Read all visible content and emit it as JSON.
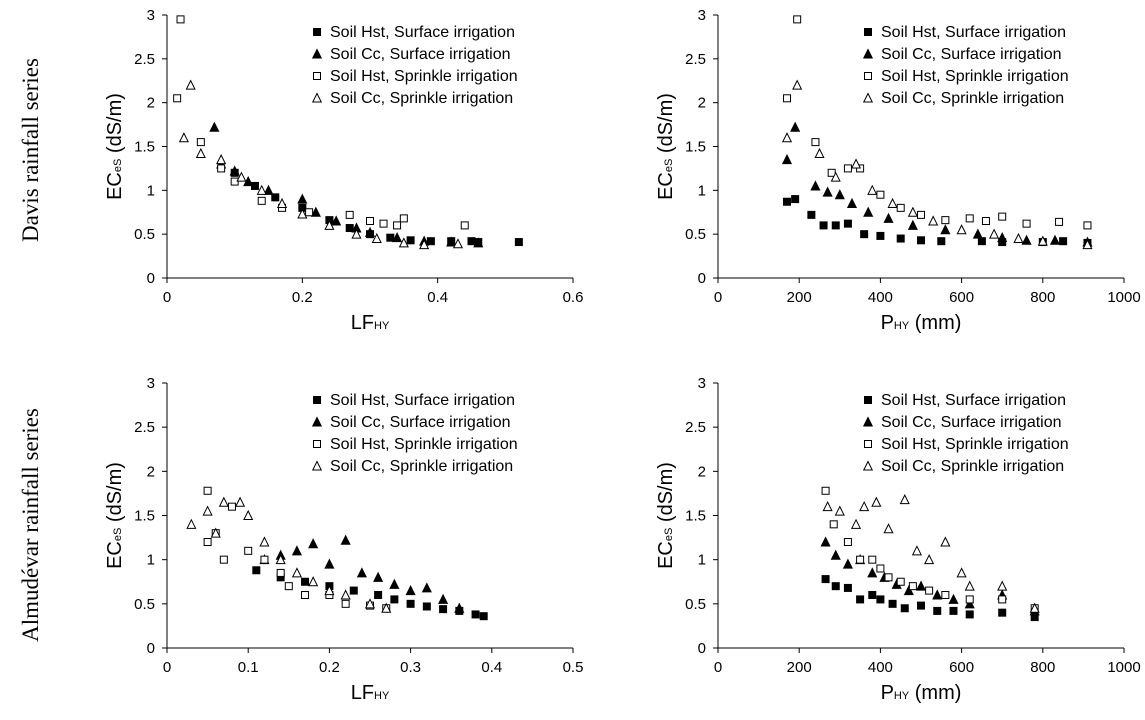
{
  "row_labels": [
    "Davis rainfall series",
    "Almudévar rainfall series"
  ],
  "legend": [
    {
      "name": "Soil Hst, Surface irrigation",
      "marker": "square-filled"
    },
    {
      "name": "Soil Cc, Surface irrigation",
      "marker": "triangle-filled"
    },
    {
      "name": "Soil Hst, Sprinkle irrigation",
      "marker": "square-open"
    },
    {
      "name": "Soil Cc, Sprinkle irrigation",
      "marker": "triangle-open"
    }
  ],
  "chart_data": [
    {
      "type": "scatter",
      "ylabel_main": "EC",
      "ylabel_sub": "eS",
      "ylabel_unit": " (dS/m)",
      "xlabel_main": "LF",
      "xlabel_sub": "HY",
      "xlabel_unit": "",
      "xlim": [
        0,
        0.6
      ],
      "ylim": [
        0,
        3
      ],
      "xticks": [
        "0",
        "0.2",
        "0.4",
        "0.6"
      ],
      "yticks": [
        "0",
        "0.5",
        "1",
        "1.5",
        "2",
        "2.5",
        "3"
      ],
      "legend_position": "top-right",
      "series": [
        {
          "name": "Soil Hst, Surface irrigation",
          "points": [
            [
              0.1,
              1.2
            ],
            [
              0.13,
              1.05
            ],
            [
              0.16,
              0.92
            ],
            [
              0.2,
              0.8
            ],
            [
              0.24,
              0.66
            ],
            [
              0.27,
              0.57
            ],
            [
              0.3,
              0.5
            ],
            [
              0.33,
              0.46
            ],
            [
              0.36,
              0.43
            ],
            [
              0.39,
              0.42
            ],
            [
              0.42,
              0.42
            ],
            [
              0.45,
              0.42
            ],
            [
              0.46,
              0.41
            ],
            [
              0.52,
              0.41
            ]
          ]
        },
        {
          "name": "Soil Cc, Surface irrigation",
          "points": [
            [
              0.07,
              1.72
            ],
            [
              0.08,
              1.3
            ],
            [
              0.1,
              1.22
            ],
            [
              0.12,
              1.1
            ],
            [
              0.15,
              1.0
            ],
            [
              0.2,
              0.9
            ],
            [
              0.22,
              0.75
            ],
            [
              0.25,
              0.65
            ],
            [
              0.28,
              0.57
            ],
            [
              0.3,
              0.52
            ],
            [
              0.34,
              0.46
            ],
            [
              0.38,
              0.42
            ],
            [
              0.42,
              0.41
            ],
            [
              0.46,
              0.4
            ]
          ]
        },
        {
          "name": "Soil Hst, Sprinkle irrigation",
          "points": [
            [
              0.015,
              2.05
            ],
            [
              0.02,
              2.95
            ],
            [
              0.05,
              1.55
            ],
            [
              0.08,
              1.25
            ],
            [
              0.1,
              1.1
            ],
            [
              0.14,
              0.88
            ],
            [
              0.17,
              0.8
            ],
            [
              0.21,
              0.75
            ],
            [
              0.27,
              0.72
            ],
            [
              0.3,
              0.65
            ],
            [
              0.32,
              0.62
            ],
            [
              0.34,
              0.6
            ],
            [
              0.35,
              0.68
            ],
            [
              0.44,
              0.6
            ]
          ]
        },
        {
          "name": "Soil Cc, Sprinkle irrigation",
          "points": [
            [
              0.025,
              1.6
            ],
            [
              0.035,
              2.2
            ],
            [
              0.05,
              1.42
            ],
            [
              0.08,
              1.35
            ],
            [
              0.11,
              1.15
            ],
            [
              0.14,
              1.0
            ],
            [
              0.17,
              0.85
            ],
            [
              0.2,
              0.73
            ],
            [
              0.24,
              0.6
            ],
            [
              0.28,
              0.5
            ],
            [
              0.31,
              0.45
            ],
            [
              0.35,
              0.4
            ],
            [
              0.38,
              0.38
            ],
            [
              0.43,
              0.39
            ]
          ]
        }
      ]
    },
    {
      "type": "scatter",
      "ylabel_main": "EC",
      "ylabel_sub": "eS",
      "ylabel_unit": " (dS/m)",
      "xlabel_main": "P",
      "xlabel_sub": "HY",
      "xlabel_unit": " (mm)",
      "xlim": [
        0,
        1000
      ],
      "ylim": [
        0,
        3
      ],
      "xticks": [
        "0",
        "200",
        "400",
        "600",
        "800",
        "1000"
      ],
      "yticks": [
        "0",
        "0.5",
        "1",
        "1.5",
        "2",
        "2.5",
        "3"
      ],
      "legend_position": "top-right",
      "series": [
        {
          "name": "Soil Hst, Surface irrigation",
          "points": [
            [
              170,
              0.87
            ],
            [
              190,
              0.9
            ],
            [
              230,
              0.72
            ],
            [
              260,
              0.6
            ],
            [
              290,
              0.6
            ],
            [
              320,
              0.62
            ],
            [
              360,
              0.5
            ],
            [
              400,
              0.48
            ],
            [
              450,
              0.45
            ],
            [
              500,
              0.43
            ],
            [
              550,
              0.42
            ],
            [
              650,
              0.42
            ],
            [
              700,
              0.41
            ],
            [
              800,
              0.41
            ],
            [
              850,
              0.42
            ],
            [
              910,
              0.4
            ]
          ]
        },
        {
          "name": "Soil Cc, Surface irrigation",
          "points": [
            [
              170,
              1.35
            ],
            [
              190,
              1.72
            ],
            [
              240,
              1.05
            ],
            [
              270,
              0.98
            ],
            [
              300,
              0.95
            ],
            [
              330,
              0.85
            ],
            [
              370,
              0.75
            ],
            [
              420,
              0.68
            ],
            [
              480,
              0.6
            ],
            [
              560,
              0.55
            ],
            [
              640,
              0.5
            ],
            [
              700,
              0.46
            ],
            [
              760,
              0.43
            ],
            [
              830,
              0.43
            ],
            [
              910,
              0.41
            ]
          ]
        },
        {
          "name": "Soil Hst, Sprinkle irrigation",
          "points": [
            [
              170,
              2.05
            ],
            [
              195,
              2.95
            ],
            [
              240,
              1.55
            ],
            [
              280,
              1.2
            ],
            [
              320,
              1.25
            ],
            [
              350,
              1.25
            ],
            [
              400,
              0.95
            ],
            [
              450,
              0.8
            ],
            [
              500,
              0.72
            ],
            [
              560,
              0.66
            ],
            [
              620,
              0.68
            ],
            [
              660,
              0.65
            ],
            [
              700,
              0.7
            ],
            [
              760,
              0.62
            ],
            [
              840,
              0.64
            ],
            [
              910,
              0.6
            ]
          ]
        },
        {
          "name": "Soil Cc, Sprinkle irrigation",
          "points": [
            [
              170,
              1.6
            ],
            [
              195,
              2.2
            ],
            [
              250,
              1.42
            ],
            [
              290,
              1.15
            ],
            [
              340,
              1.3
            ],
            [
              380,
              1.0
            ],
            [
              430,
              0.85
            ],
            [
              480,
              0.75
            ],
            [
              530,
              0.65
            ],
            [
              600,
              0.55
            ],
            [
              680,
              0.5
            ],
            [
              740,
              0.45
            ],
            [
              800,
              0.42
            ],
            [
              910,
              0.38
            ]
          ]
        }
      ]
    },
    {
      "type": "scatter",
      "ylabel_main": "EC",
      "ylabel_sub": "eS",
      "ylabel_unit": " (dS/m)",
      "xlabel_main": "LF",
      "xlabel_sub": "HY",
      "xlabel_unit": "",
      "xlim": [
        0,
        0.5
      ],
      "ylim": [
        0,
        3
      ],
      "xticks": [
        "0",
        "0.1",
        "0.2",
        "0.3",
        "0.4",
        "0.5"
      ],
      "yticks": [
        "0",
        "0.5",
        "1",
        "1.5",
        "2",
        "2.5",
        "3"
      ],
      "legend_position": "top-right",
      "series": [
        {
          "name": "Soil Hst, Surface irrigation",
          "points": [
            [
              0.11,
              0.88
            ],
            [
              0.14,
              0.8
            ],
            [
              0.17,
              0.75
            ],
            [
              0.2,
              0.7
            ],
            [
              0.23,
              0.65
            ],
            [
              0.26,
              0.6
            ],
            [
              0.28,
              0.55
            ],
            [
              0.3,
              0.5
            ],
            [
              0.32,
              0.47
            ],
            [
              0.34,
              0.44
            ],
            [
              0.36,
              0.42
            ],
            [
              0.38,
              0.38
            ],
            [
              0.39,
              0.36
            ]
          ]
        },
        {
          "name": "Soil Cc, Surface irrigation",
          "points": [
            [
              0.12,
              1.0
            ],
            [
              0.14,
              1.05
            ],
            [
              0.16,
              1.1
            ],
            [
              0.18,
              1.18
            ],
            [
              0.2,
              0.95
            ],
            [
              0.22,
              1.22
            ],
            [
              0.24,
              0.85
            ],
            [
              0.26,
              0.8
            ],
            [
              0.28,
              0.72
            ],
            [
              0.3,
              0.65
            ],
            [
              0.32,
              0.68
            ],
            [
              0.34,
              0.55
            ],
            [
              0.36,
              0.45
            ]
          ]
        },
        {
          "name": "Soil Hst, Sprinkle irrigation",
          "points": [
            [
              0.05,
              1.78
            ],
            [
              0.05,
              1.2
            ],
            [
              0.06,
              1.3
            ],
            [
              0.07,
              1.0
            ],
            [
              0.08,
              1.6
            ],
            [
              0.1,
              1.1
            ],
            [
              0.12,
              1.0
            ],
            [
              0.14,
              0.85
            ],
            [
              0.15,
              0.7
            ],
            [
              0.17,
              0.6
            ],
            [
              0.2,
              0.6
            ],
            [
              0.22,
              0.5
            ],
            [
              0.25,
              0.48
            ],
            [
              0.27,
              0.45
            ]
          ]
        },
        {
          "name": "Soil Cc, Sprinkle irrigation",
          "points": [
            [
              0.03,
              1.4
            ],
            [
              0.05,
              1.55
            ],
            [
              0.06,
              1.3
            ],
            [
              0.07,
              1.65
            ],
            [
              0.09,
              1.65
            ],
            [
              0.1,
              1.5
            ],
            [
              0.12,
              1.2
            ],
            [
              0.14,
              1.0
            ],
            [
              0.16,
              0.85
            ],
            [
              0.18,
              0.75
            ],
            [
              0.2,
              0.65
            ],
            [
              0.22,
              0.6
            ],
            [
              0.25,
              0.5
            ],
            [
              0.27,
              0.45
            ]
          ]
        }
      ]
    },
    {
      "type": "scatter",
      "ylabel_main": "EC",
      "ylabel_sub": "eS",
      "ylabel_unit": " (dS/m)",
      "xlabel_main": "P",
      "xlabel_sub": "HY",
      "xlabel_unit": " (mm)",
      "xlim": [
        0,
        1000
      ],
      "ylim": [
        0,
        3
      ],
      "xticks": [
        "0",
        "200",
        "400",
        "600",
        "800",
        "1000"
      ],
      "yticks": [
        "0",
        "0.5",
        "1",
        "1.5",
        "2",
        "2.5",
        "3"
      ],
      "legend_position": "top-right",
      "series": [
        {
          "name": "Soil Hst, Surface irrigation",
          "points": [
            [
              265,
              0.78
            ],
            [
              290,
              0.7
            ],
            [
              320,
              0.68
            ],
            [
              350,
              0.55
            ],
            [
              380,
              0.6
            ],
            [
              400,
              0.55
            ],
            [
              430,
              0.5
            ],
            [
              460,
              0.45
            ],
            [
              500,
              0.48
            ],
            [
              540,
              0.42
            ],
            [
              580,
              0.42
            ],
            [
              620,
              0.38
            ],
            [
              700,
              0.4
            ],
            [
              780,
              0.35
            ]
          ]
        },
        {
          "name": "Soil Cc, Surface irrigation",
          "points": [
            [
              265,
              1.2
            ],
            [
              290,
              1.05
            ],
            [
              320,
              0.95
            ],
            [
              350,
              1.0
            ],
            [
              380,
              0.85
            ],
            [
              410,
              0.8
            ],
            [
              440,
              0.72
            ],
            [
              470,
              0.65
            ],
            [
              500,
              0.7
            ],
            [
              540,
              0.6
            ],
            [
              580,
              0.55
            ],
            [
              620,
              0.5
            ],
            [
              700,
              0.6
            ],
            [
              780,
              0.42
            ]
          ]
        },
        {
          "name": "Soil Hst, Sprinkle irrigation",
          "points": [
            [
              265,
              1.78
            ],
            [
              285,
              1.4
            ],
            [
              320,
              1.2
            ],
            [
              350,
              1.0
            ],
            [
              380,
              1.0
            ],
            [
              400,
              0.9
            ],
            [
              420,
              0.8
            ],
            [
              450,
              0.75
            ],
            [
              480,
              0.7
            ],
            [
              520,
              0.65
            ],
            [
              560,
              0.6
            ],
            [
              620,
              0.55
            ],
            [
              700,
              0.55
            ],
            [
              780,
              0.45
            ]
          ]
        },
        {
          "name": "Soil Cc, Sprinkle irrigation",
          "points": [
            [
              270,
              1.6
            ],
            [
              300,
              1.55
            ],
            [
              340,
              1.4
            ],
            [
              360,
              1.6
            ],
            [
              390,
              1.65
            ],
            [
              420,
              1.35
            ],
            [
              460,
              1.68
            ],
            [
              490,
              1.1
            ],
            [
              520,
              1.0
            ],
            [
              560,
              1.2
            ],
            [
              600,
              0.85
            ],
            [
              620,
              0.7
            ],
            [
              700,
              0.7
            ],
            [
              780,
              0.45
            ]
          ]
        }
      ]
    }
  ]
}
